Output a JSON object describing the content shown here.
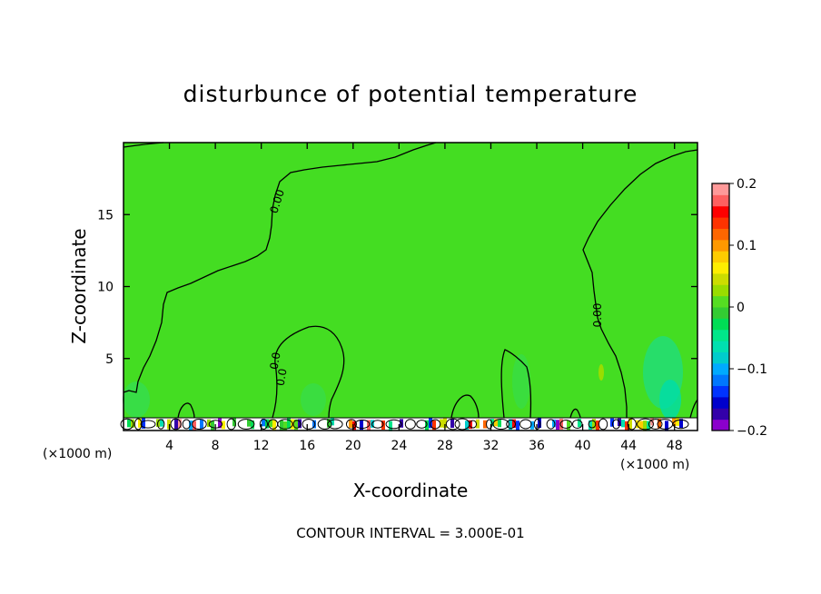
{
  "chart_data": {
    "type": "heatmap",
    "title": "disturbunce of potential temperature",
    "xlabel": "X-coordinate",
    "ylabel": "Z-coordinate",
    "x_unit": "(×1000 m)",
    "x_unit_right": "(×1000 m)",
    "xlim": [
      0,
      50
    ],
    "ylim": [
      0,
      20
    ],
    "x_ticks": [
      "4",
      "8",
      "12",
      "16",
      "20",
      "24",
      "28",
      "32",
      "36",
      "40",
      "44",
      "48"
    ],
    "y_ticks": [
      "5",
      "10",
      "15"
    ],
    "contour_interval_text": "CONTOUR INTERVAL = 3.000E-01",
    "contour_labels": [
      "0.00",
      "0.0",
      "0.0",
      "0.00"
    ],
    "colorbar": {
      "range": [
        -0.2,
        0.2
      ],
      "tick_labels": [
        "0.2",
        "0.1",
        "0",
        "−0.1",
        "−0.2"
      ],
      "colors": [
        "#8b00cc",
        "#3300aa",
        "#0000cc",
        "#0033ff",
        "#0077ff",
        "#00aaff",
        "#00cccc",
        "#00e0b0",
        "#00e68a",
        "#00dd55",
        "#33cc33",
        "#55dd22",
        "#99dd00",
        "#ccdd00",
        "#ffee00",
        "#ffcc00",
        "#ff9900",
        "#ff6600",
        "#ff3300",
        "#ff0000",
        "#ff6060",
        "#ff9999"
      ]
    },
    "field_color": "#44dd22",
    "grid": false
  }
}
